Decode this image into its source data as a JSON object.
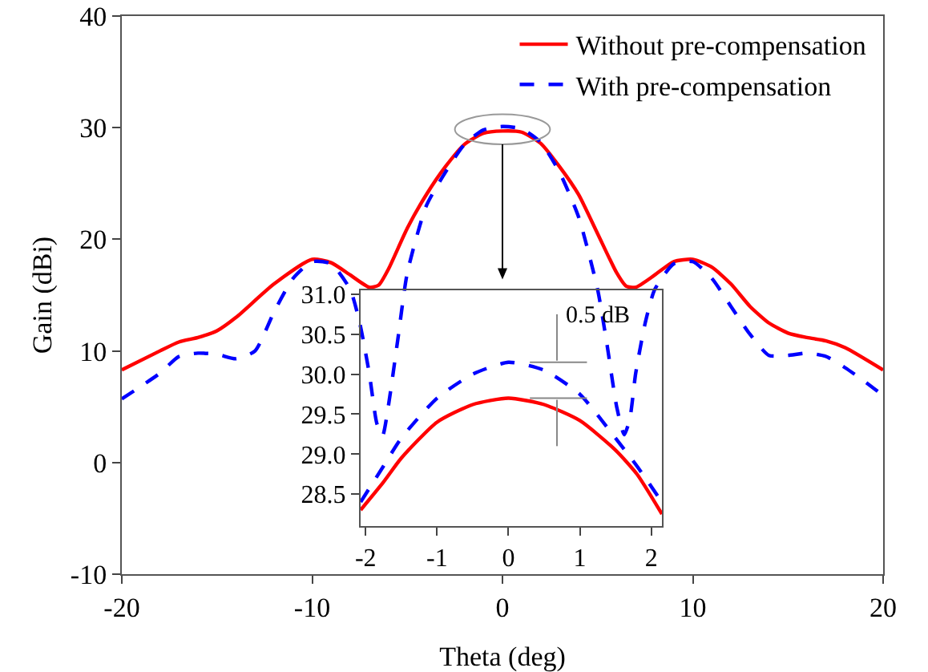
{
  "chart_data": [
    {
      "type": "line",
      "xlabel": "Theta (deg)",
      "ylabel": "Gain (dBi)",
      "xlim": [
        -20,
        20
      ],
      "ylim": [
        -10,
        40
      ],
      "xticks": [
        -20,
        -10,
        0,
        10,
        20
      ],
      "yticks": [
        -10,
        0,
        10,
        20,
        30,
        40
      ],
      "grid": false,
      "legend": "top right",
      "series": [
        {
          "name": "Without pre-compensation",
          "color": "#ff0000",
          "line_style": "solid",
          "x": [
            -20,
            -18,
            -17,
            -16,
            -15,
            -14,
            -12,
            -10,
            -9,
            -8,
            -7,
            -6.5,
            -6,
            -5,
            -4,
            -3,
            -2,
            -1,
            0,
            1,
            2,
            3,
            4,
            5,
            6,
            6.5,
            7,
            8,
            9,
            10,
            11,
            12,
            13,
            14,
            15,
            16,
            17,
            18,
            20
          ],
          "values": [
            8.3,
            10,
            10.8,
            11.2,
            11.8,
            13,
            16,
            18.2,
            17.9,
            16.8,
            15.7,
            15.9,
            17.3,
            21,
            24,
            26.5,
            28.5,
            29.5,
            29.7,
            29.6,
            28.6,
            26.5,
            24,
            20.5,
            17,
            15.8,
            15.7,
            16.8,
            18,
            18.2,
            17.5,
            16,
            14,
            12.5,
            11.6,
            11.2,
            10.9,
            10.3,
            8.3
          ]
        },
        {
          "name": "With pre-compensation",
          "color": "#0000ff",
          "line_style": "dashed",
          "x": [
            -20,
            -18,
            -17,
            -16,
            -15,
            -14,
            -13,
            -12,
            -11,
            -10,
            -9,
            -8,
            -7.5,
            -7,
            -6.6,
            -6.3,
            -6,
            -5.5,
            -5,
            -4,
            -3,
            -2,
            -1,
            0,
            1,
            2,
            3,
            4,
            5,
            5.5,
            6,
            6.4,
            6.7,
            7,
            7.5,
            8,
            9,
            10,
            11,
            12,
            13,
            14,
            15,
            16,
            17,
            18,
            19,
            20
          ],
          "values": [
            5.7,
            8,
            9.5,
            9.8,
            9.7,
            9.3,
            10,
            13.5,
            16.5,
            18,
            17.8,
            15.5,
            12.5,
            8,
            3.5,
            2.4,
            5,
            11,
            17,
            23,
            26,
            28.5,
            29.8,
            30.1,
            29.9,
            28.7,
            26,
            22,
            15.5,
            10.5,
            5,
            2.5,
            4,
            8,
            12.5,
            15.5,
            17.8,
            18,
            16.5,
            14,
            11.5,
            9.6,
            9.6,
            9.8,
            9.5,
            8.5,
            7.3,
            6
          ]
        }
      ]
    },
    {
      "type": "line",
      "xlim": [
        -2.07,
        2.15
      ],
      "ylim": [
        28.1,
        31.05
      ],
      "xticks": [
        -2,
        -1,
        0,
        1,
        2
      ],
      "yticks": [
        {
          "value": 28.5,
          "label": "28.5"
        },
        {
          "value": 29,
          "label": "29.0"
        },
        {
          "value": 29.5,
          "label": "29.5"
        },
        {
          "value": 30,
          "label": "30.0"
        },
        {
          "value": 30.5,
          "label": "30.5"
        },
        {
          "value": 31,
          "label": "31.0"
        }
      ],
      "grid": false,
      "annotations": [
        "0.5 dB"
      ],
      "series": [
        {
          "color": "#ff0000",
          "line_style": "solid",
          "x": [
            -2.07,
            -1.75,
            -1.5,
            -1,
            -0.5,
            0,
            0.5,
            1,
            1.5,
            1.8,
            2.15
          ],
          "values": [
            28.3,
            28.65,
            28.95,
            29.4,
            29.62,
            29.7,
            29.62,
            29.42,
            29.05,
            28.75,
            28.25
          ]
        },
        {
          "color": "#0000ff",
          "line_style": "dashed",
          "x": [
            -2.07,
            -1.75,
            -1.5,
            -1,
            -0.5,
            0,
            0.5,
            1,
            1.5,
            1.8,
            2.15
          ],
          "values": [
            28.4,
            28.85,
            29.2,
            29.7,
            30.0,
            30.15,
            30.05,
            29.75,
            29.2,
            28.85,
            28.4
          ]
        }
      ]
    }
  ]
}
